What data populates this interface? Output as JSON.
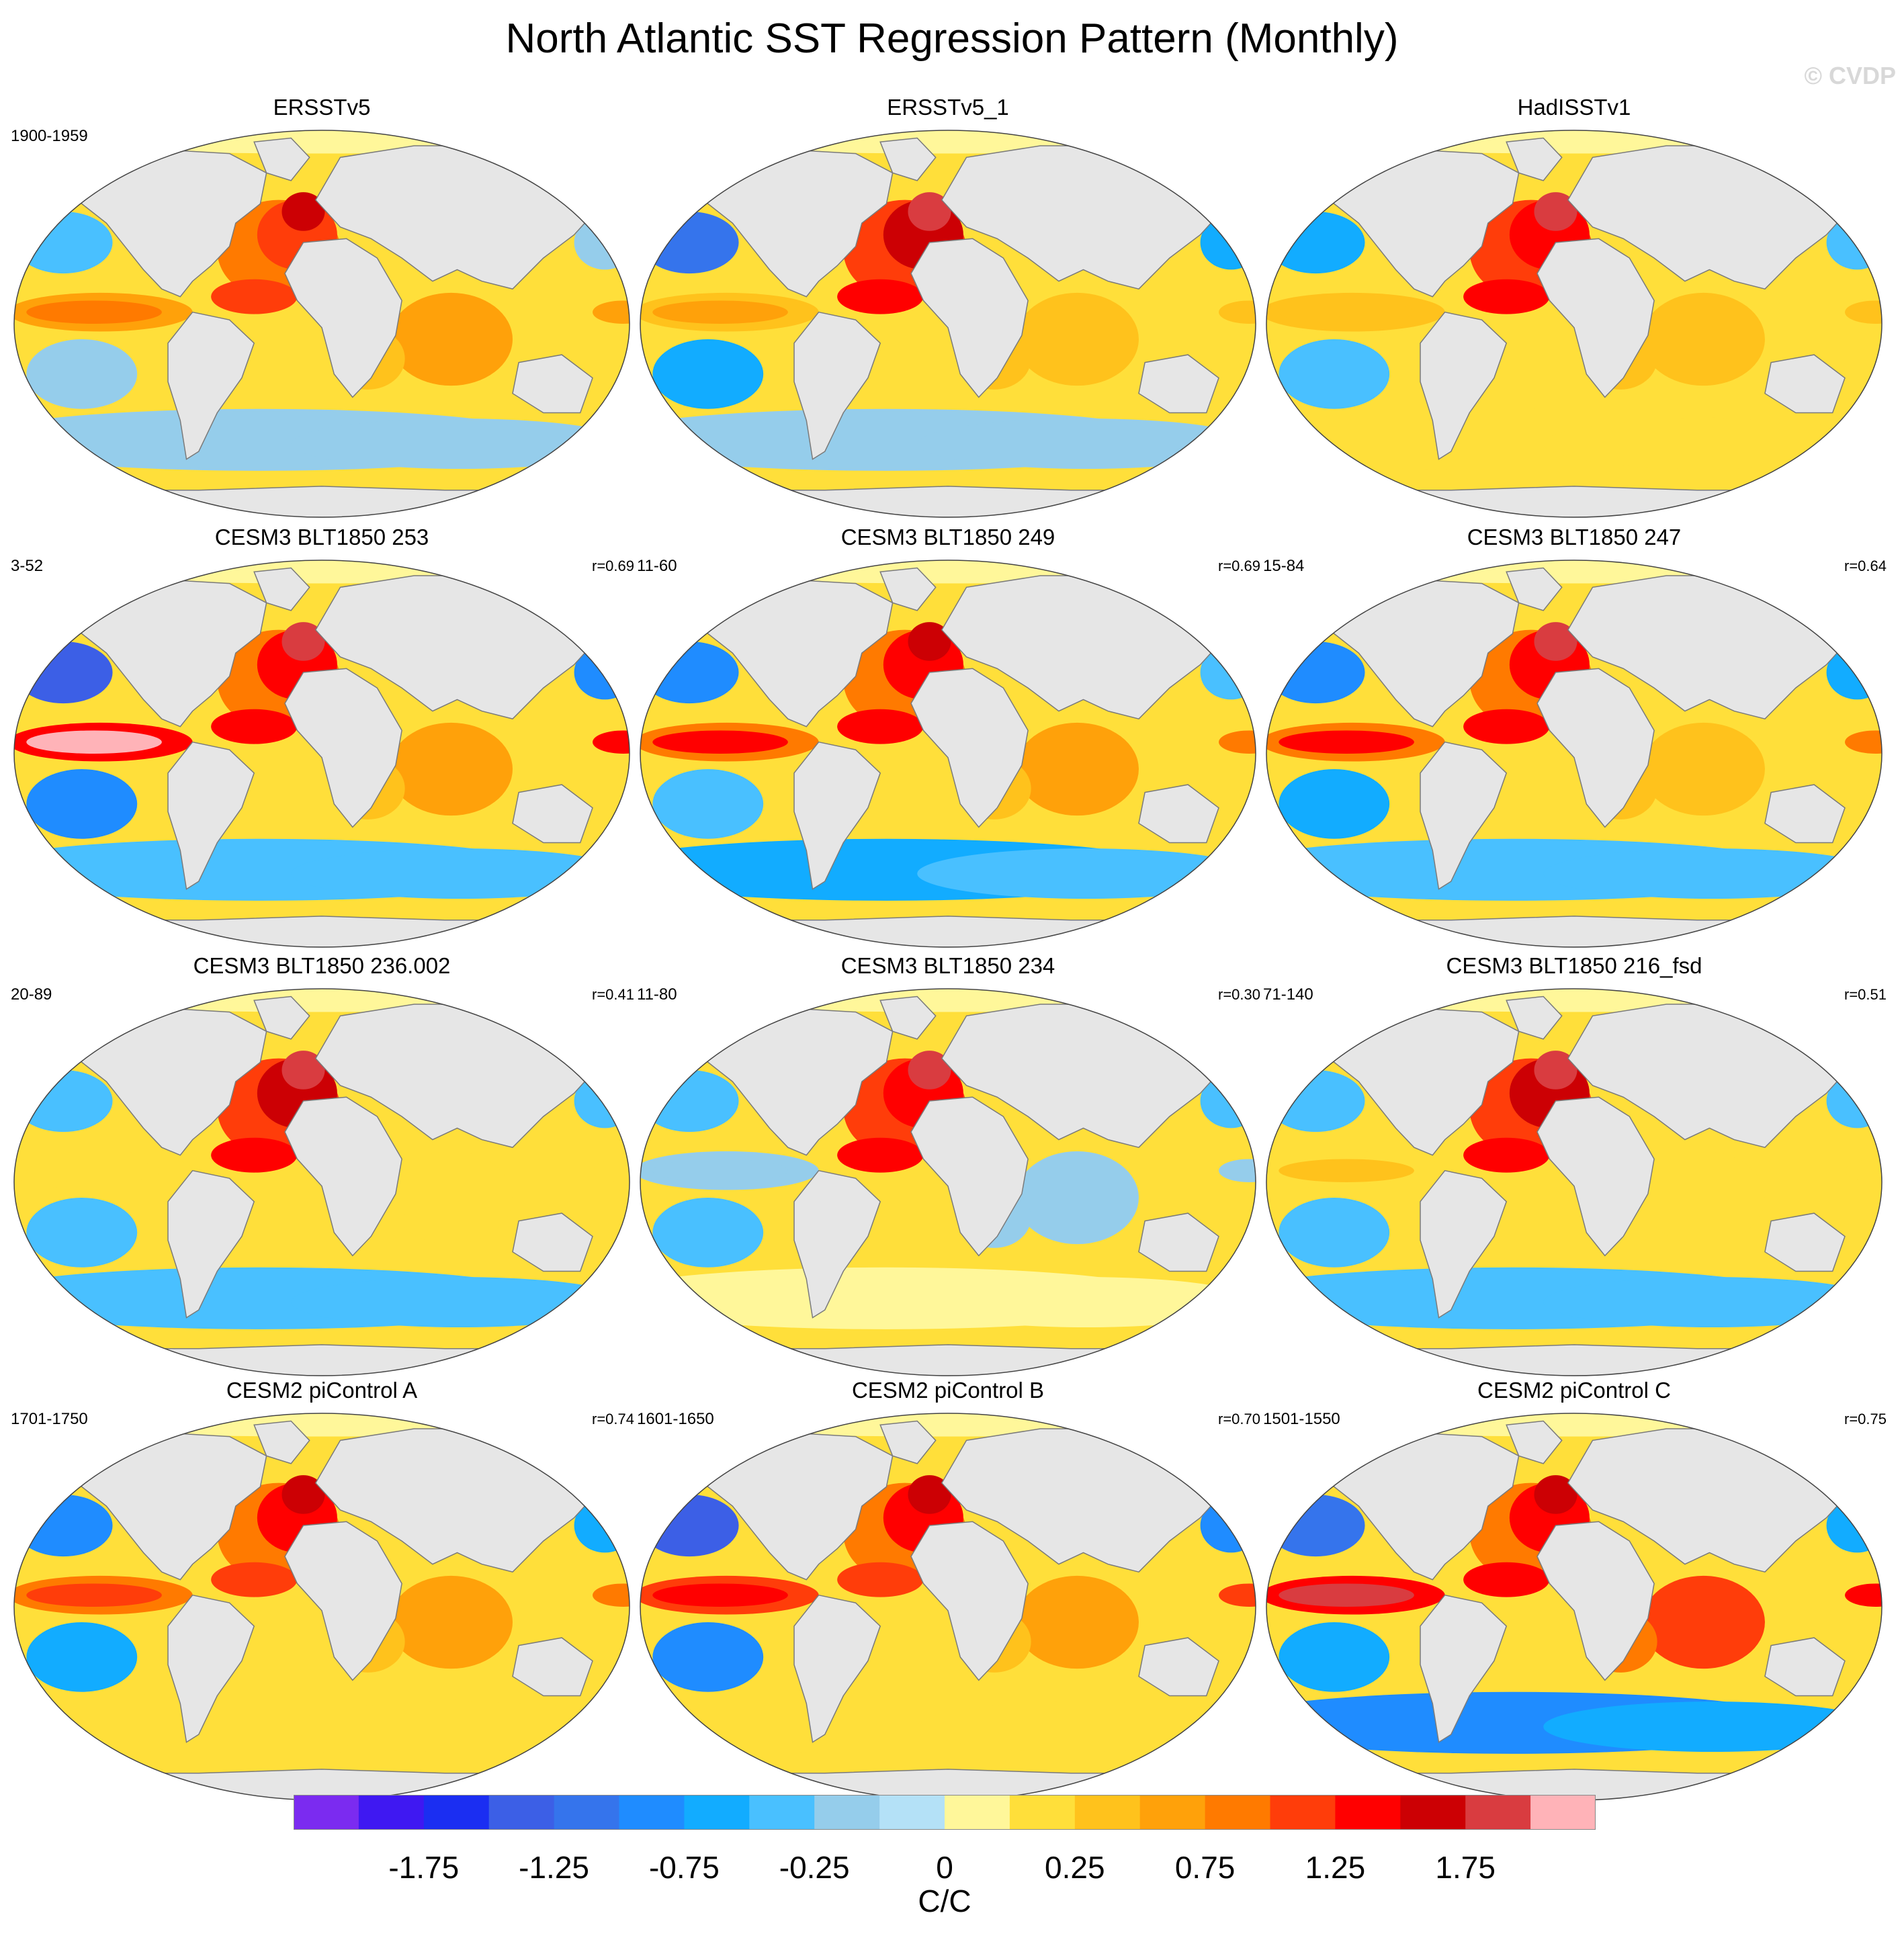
{
  "title": "North Atlantic SST Regression Pattern (Monthly)",
  "watermark": "© CVDP",
  "chart_data": {
    "type": "heatmap",
    "description_kind": "global map panels of SST regression onto North Atlantic SST index",
    "projection": "Robinson",
    "units": "C/C",
    "colorbar": {
      "levels": [
        -2.0,
        -1.75,
        -1.5,
        -1.25,
        -1.0,
        -0.75,
        -0.5,
        -0.25,
        -0.1,
        0,
        0.1,
        0.25,
        0.5,
        0.75,
        1.0,
        1.25,
        1.5,
        1.75,
        2.0
      ],
      "tick_labels": [
        "-1.75",
        "-1.25",
        "-0.75",
        "-0.25",
        "0",
        "0.25",
        "0.75",
        "1.25",
        "1.75"
      ],
      "tick_values": [
        -1.75,
        -1.25,
        -0.75,
        -0.25,
        0,
        0.25,
        0.75,
        1.25,
        1.75
      ],
      "colors": [
        "#7b2bf0",
        "#3f18f2",
        "#1b2ef2",
        "#3c5fe6",
        "#3574ec",
        "#1f8cff",
        "#12acff",
        "#49c0ff",
        "#95cdeb",
        "#b4e1f7",
        "#fff79a",
        "#ffdf3a",
        "#ffc21c",
        "#ffa10a",
        "#ff7a00",
        "#ff3d0a",
        "#ff0000",
        "#cc0004",
        "#d93c40",
        "#ffb3b8"
      ]
    },
    "panels": [
      {
        "title": "ERSSTv5",
        "years": "1900-1959",
        "r": "",
        "n_atlantic": 1.55,
        "tropical_pacific": 0.85,
        "north_pacific": -0.35,
        "southern_ocean": -0.25,
        "indian_ocean": 0.6
      },
      {
        "title": "ERSSTv5_1",
        "years": "",
        "r": "",
        "n_atlantic": 1.9,
        "tropical_pacific": 0.6,
        "north_pacific": -1.05,
        "southern_ocean": -0.2,
        "indian_ocean": 0.4
      },
      {
        "title": "HadISSTv1",
        "years": "",
        "r": "",
        "n_atlantic": 1.85,
        "tropical_pacific": 0.45,
        "north_pacific": -0.75,
        "southern_ocean": 0.2,
        "indian_ocean": 0.45
      },
      {
        "title": "CESM3 BLT1850 253",
        "years": "3-52",
        "r": "r=0.69",
        "n_atlantic": 1.8,
        "tropical_pacific": 2.0,
        "north_pacific": -1.3,
        "southern_ocean": -0.45,
        "indian_ocean": 0.55
      },
      {
        "title": "CESM3 BLT1850 249",
        "years": "11-60",
        "r": "r=0.69",
        "n_atlantic": 1.7,
        "tropical_pacific": 1.4,
        "north_pacific": -0.8,
        "southern_ocean": -0.55,
        "indian_ocean": 0.5
      },
      {
        "title": "CESM3 BLT1850 247",
        "years": "15-84",
        "r": "r=0.64",
        "n_atlantic": 1.75,
        "tropical_pacific": 1.25,
        "north_pacific": -0.85,
        "southern_ocean": -0.45,
        "indian_ocean": 0.45
      },
      {
        "title": "CESM3 BLT1850 236.002",
        "years": "20-89",
        "r": "r=0.41",
        "n_atlantic": 1.9,
        "tropical_pacific": 0.15,
        "north_pacific": -0.5,
        "southern_ocean": -0.4,
        "indian_ocean": 0.2
      },
      {
        "title": "CESM3 BLT1850 234",
        "years": "11-80",
        "r": "r=0.30",
        "n_atlantic": 1.85,
        "tropical_pacific": -0.2,
        "north_pacific": -0.45,
        "southern_ocean": 0.05,
        "indian_ocean": -0.2
      },
      {
        "title": "CESM3 BLT1850 216_fsd",
        "years": "71-140",
        "r": "r=0.51",
        "n_atlantic": 1.95,
        "tropical_pacific": 0.35,
        "north_pacific": -0.45,
        "southern_ocean": -0.35,
        "indian_ocean": 0.15
      },
      {
        "title": "CESM2 piControl A",
        "years": "1701-1750",
        "r": "r=0.74",
        "n_atlantic": 1.6,
        "tropical_pacific": 1.2,
        "north_pacific": -1.0,
        "southern_ocean": 0.2,
        "indian_ocean": 0.55
      },
      {
        "title": "CESM2 piControl B",
        "years": "1601-1650",
        "r": "r=0.70",
        "n_atlantic": 1.65,
        "tropical_pacific": 1.45,
        "north_pacific": -1.5,
        "southern_ocean": 0.15,
        "indian_ocean": 0.55
      },
      {
        "title": "CESM2 piControl C",
        "years": "1501-1550",
        "r": "r=0.75",
        "n_atlantic": 1.7,
        "tropical_pacific": 1.95,
        "north_pacific": -1.2,
        "southern_ocean": -0.9,
        "indian_ocean": 1.05
      }
    ]
  }
}
